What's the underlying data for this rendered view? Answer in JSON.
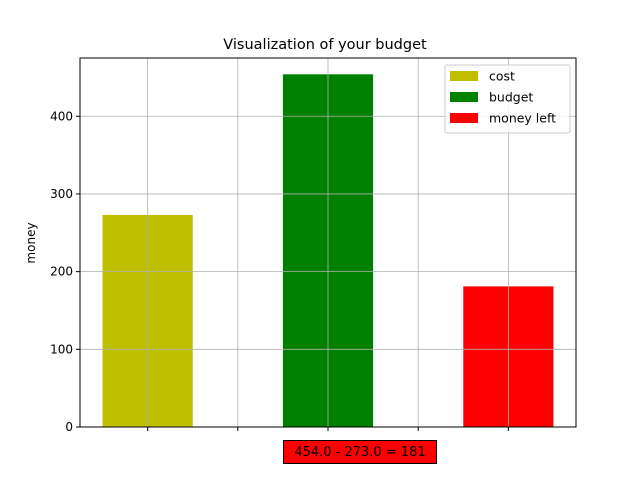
{
  "chart_data": {
    "type": "bar",
    "title": "Visualization of your budget",
    "xlabel": "",
    "ylabel": "money",
    "categories": [
      "cost",
      "budget",
      "money left"
    ],
    "values": [
      273.0,
      454.0,
      181.0
    ],
    "colors": [
      "#bfbf00",
      "#008000",
      "#ff0000"
    ],
    "ylim": [
      0,
      475
    ],
    "yticks": [
      0,
      100,
      200,
      300,
      400
    ],
    "grid": true,
    "legend": {
      "position": "top-right",
      "entries": [
        {
          "label": "cost",
          "color": "#bfbf00"
        },
        {
          "label": "budget",
          "color": "#008000"
        },
        {
          "label": "money left",
          "color": "#ff0000"
        }
      ]
    },
    "annotation": "454.0 - 273.0 = 181"
  }
}
